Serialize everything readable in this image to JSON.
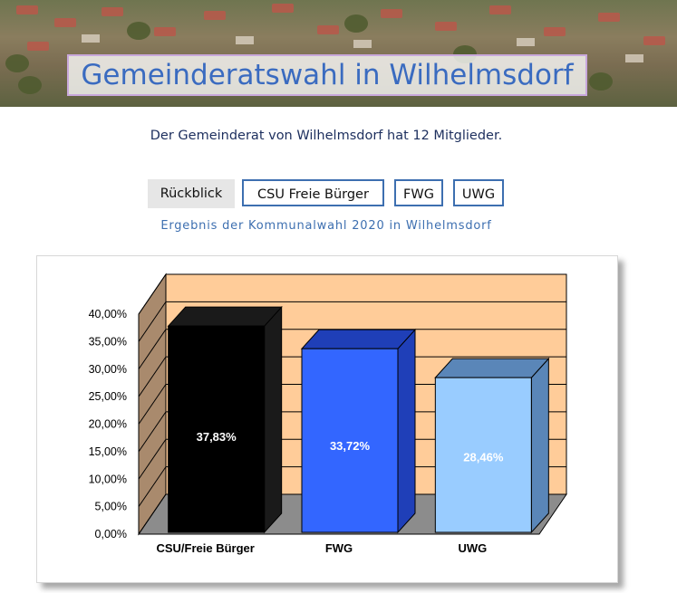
{
  "header": {
    "title": "Gemeinderatswahl in Wilhelmsdorf"
  },
  "intro": {
    "text": "Der Gemeinderat von Wilhelmsdorf hat 12 Mitglieder."
  },
  "tabs": [
    {
      "label": "Rückblick",
      "active": true
    },
    {
      "label": "CSU Freie Bürger",
      "active": false
    },
    {
      "label": "FWG",
      "active": false
    },
    {
      "label": "UWG",
      "active": false
    }
  ],
  "subtitle": "Ergebnis der Kommunalwahl 2020 in Wilhelmsdorf",
  "chart_data": {
    "type": "bar",
    "categories": [
      "CSU/Freie Bürger",
      "FWG",
      "UWG"
    ],
    "values": [
      37.83,
      33.72,
      28.46
    ],
    "value_labels": [
      "37,83%",
      "33,72%",
      "28,46%"
    ],
    "ylim": [
      0,
      40
    ],
    "yticks": [
      "0,00%",
      "5,00%",
      "10,00%",
      "15,00%",
      "20,00%",
      "25,00%",
      "30,00%",
      "35,00%",
      "40,00%"
    ],
    "grid": true,
    "legend": "none",
    "colors": {
      "bars": [
        "#000000",
        "#3366ff",
        "#99ccff"
      ],
      "bar_sides": [
        "#1a1a1a",
        "#1f3fb8",
        "#5a86b8"
      ],
      "back_wall": "#ffcc99",
      "side_wall": "#a98a6d",
      "floor": "#8c8c8c",
      "label_text": [
        "#ffffff",
        "#ffffff",
        "#ffffff"
      ]
    }
  }
}
